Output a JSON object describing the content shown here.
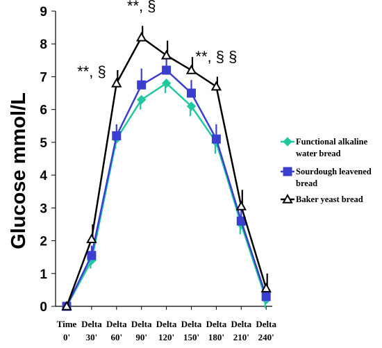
{
  "chart_data": {
    "type": "line",
    "title": "",
    "xlabel": "",
    "ylabel": "Glucose mmol/L",
    "ylim": [
      0,
      9
    ],
    "yticks": [
      0,
      1,
      2,
      3,
      4,
      5,
      6,
      7,
      8,
      9
    ],
    "categories": [
      {
        "line1": "Time",
        "line2": "0'"
      },
      {
        "line1": "Delta",
        "line2": "30'"
      },
      {
        "line1": "Delta",
        "line2": "60'"
      },
      {
        "line1": "Delta",
        "line2": "90'"
      },
      {
        "line1": "Delta",
        "line2": "120'"
      },
      {
        "line1": "Delta",
        "line2": "150'"
      },
      {
        "line1": "Delta",
        "line2": "180'"
      },
      {
        "line1": "Delta",
        "line2": "210'"
      },
      {
        "line1": "Delta",
        "line2": "240'"
      }
    ],
    "series": [
      {
        "name": "Functional alkaline water bread",
        "legend_lines": [
          "Functional alkaline",
          "water bread"
        ],
        "color": "#1fc9a0",
        "marker": "diamond",
        "values": [
          0,
          1.4,
          5.1,
          6.3,
          6.8,
          6.1,
          5.0,
          2.5,
          0.2
        ],
        "errors": [
          0,
          0.25,
          0.3,
          0.3,
          0.3,
          0.3,
          0.35,
          0.3,
          0.25
        ]
      },
      {
        "name": "Sourdough leavened bread",
        "legend_lines": [
          "Sourdough leavened",
          "bread"
        ],
        "color": "#3b3fd0",
        "marker": "square",
        "values": [
          0,
          1.55,
          5.2,
          6.75,
          7.2,
          6.5,
          5.1,
          2.6,
          0.3
        ],
        "errors": [
          0,
          0.3,
          0.35,
          0.5,
          0.4,
          0.4,
          0.45,
          0.35,
          0.3
        ]
      },
      {
        "name": "Baker yeast bread",
        "legend_lines": [
          "Baker yeast bread"
        ],
        "color": "#000000",
        "marker": "triangle",
        "values": [
          0,
          2.05,
          6.8,
          8.2,
          7.65,
          7.2,
          6.7,
          3.05,
          0.55
        ],
        "errors": [
          0,
          0.45,
          0.4,
          0.35,
          0.45,
          0.4,
          0.3,
          0.5,
          0.45
        ]
      }
    ],
    "annotations": [
      {
        "text": "**, §",
        "category_index": 1,
        "y": 7.0
      },
      {
        "text": "**, §",
        "category_index": 3,
        "y": 9.0
      },
      {
        "text": "**, §  §",
        "category_index": 6,
        "y": 7.45
      }
    ],
    "grid": false,
    "legend": "right"
  }
}
